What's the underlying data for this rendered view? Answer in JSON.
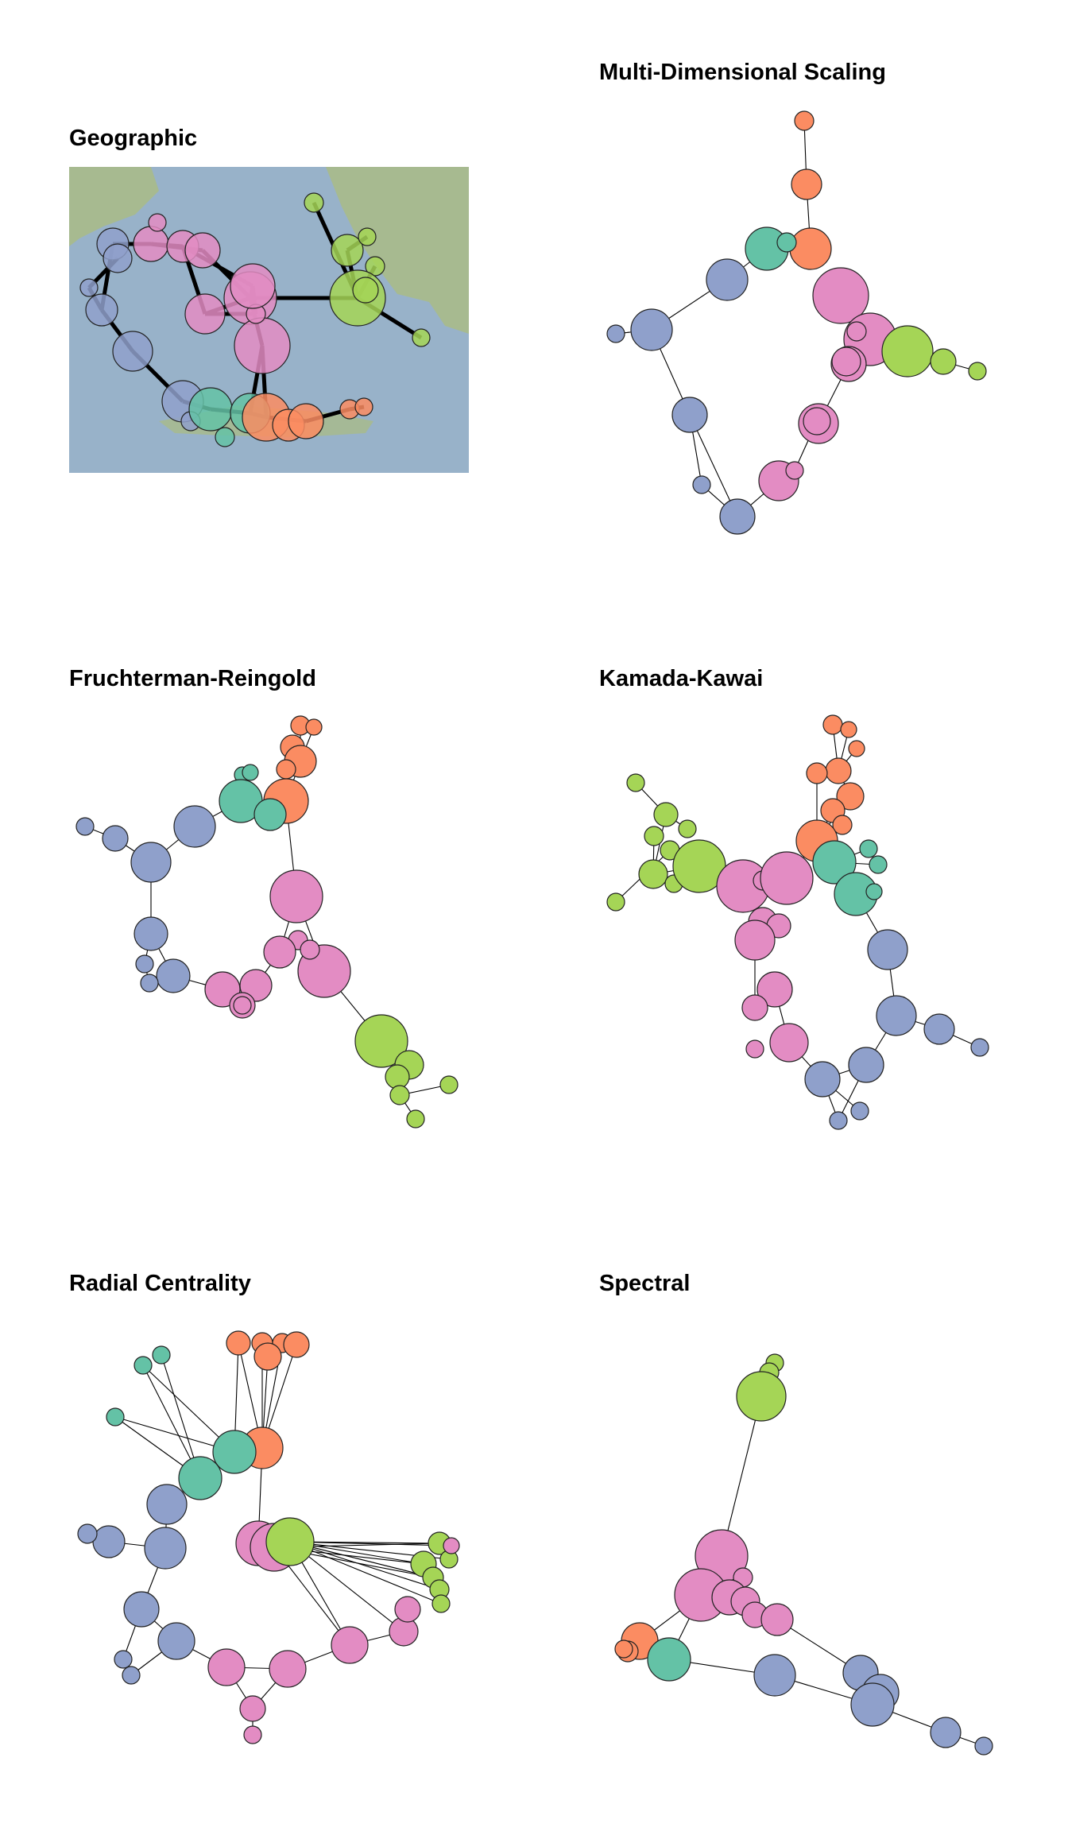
{
  "colors": {
    "blue": "#8fa0cb",
    "pink": "#e38cc3",
    "green": "#a5d556",
    "orange": "#fb8c62",
    "teal": "#64c2a6",
    "stroke": "#222222",
    "sea": "#98b2c9",
    "land": "#a9ba8a"
  },
  "panels": [
    {
      "id": "geographic",
      "title": "Geographic"
    },
    {
      "id": "mds",
      "title": "Multi-Dimensional Scaling"
    },
    {
      "id": "fr",
      "title": "Fruchterman-Reingold"
    },
    {
      "id": "kk",
      "title": "Kamada-Kawai"
    },
    {
      "id": "radial",
      "title": "Radial Centrality"
    },
    {
      "id": "spectral",
      "title": "Spectral"
    }
  ]
}
